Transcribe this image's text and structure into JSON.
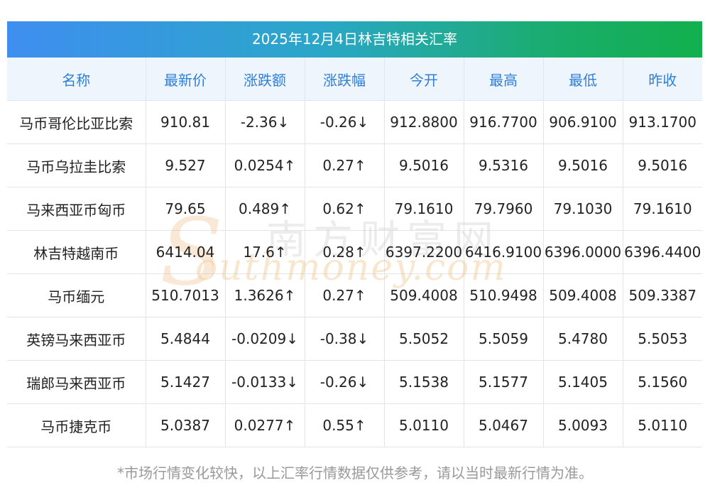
{
  "title": "2025年12月4日林吉特相关汇率",
  "columns": [
    "名称",
    "最新价",
    "涨跌额",
    "涨跌幅",
    "今开",
    "最高",
    "最低",
    "昨收"
  ],
  "rows": [
    {
      "name": "马币哥伦比亚比索",
      "latest": "910.81",
      "change": "-2.36↓",
      "change_pct": "-0.26↓",
      "open": "912.8800",
      "high": "916.7700",
      "low": "906.9100",
      "prev_close": "913.1700",
      "trend": "down"
    },
    {
      "name": "马币乌拉圭比索",
      "latest": "9.527",
      "change": "0.0254↑",
      "change_pct": "0.27↑",
      "open": "9.5016",
      "high": "9.5316",
      "low": "9.5016",
      "prev_close": "9.5016",
      "trend": "up"
    },
    {
      "name": "马来西亚币匈币",
      "latest": "79.65",
      "change": "0.489↑",
      "change_pct": "0.62↑",
      "open": "79.1610",
      "high": "79.7960",
      "low": "79.1030",
      "prev_close": "79.1610",
      "trend": "up"
    },
    {
      "name": "林吉特越南币",
      "latest": "6414.04",
      "change": "17.6↑",
      "change_pct": "0.28↑",
      "open": "6397.2200",
      "high": "6416.9100",
      "low": "6396.0000",
      "prev_close": "6396.4400",
      "trend": "up"
    },
    {
      "name": "马币缅元",
      "latest": "510.7013",
      "change": "1.3626↑",
      "change_pct": "0.27↑",
      "open": "509.4008",
      "high": "510.9498",
      "low": "509.4008",
      "prev_close": "509.3387",
      "trend": "up"
    },
    {
      "name": "英镑马来西亚币",
      "latest": "5.4844",
      "change": "-0.0209↓",
      "change_pct": "-0.38↓",
      "open": "5.5052",
      "high": "5.5059",
      "low": "5.4780",
      "prev_close": "5.5053",
      "trend": "down"
    },
    {
      "name": "瑞郎马来西亚币",
      "latest": "5.1427",
      "change": "-0.0133↓",
      "change_pct": "-0.26↓",
      "open": "5.1538",
      "high": "5.1577",
      "low": "5.1405",
      "prev_close": "5.1560",
      "trend": "down"
    },
    {
      "name": "马币捷克币",
      "latest": "5.0387",
      "change": "0.0277↑",
      "change_pct": "0.55↑",
      "open": "5.0110",
      "high": "5.0467",
      "low": "5.0093",
      "prev_close": "5.0110",
      "trend": "up"
    }
  ],
  "watermark": {
    "cn": "南方财富网",
    "en": "outhmoney.com",
    "letter": "S"
  },
  "footnote": "*市场行情变化较快，以上汇率行情数据仅供参考，请以当时最新行情为准。",
  "colors": {
    "up": "#e52222",
    "down": "#1a8a2e",
    "header_text": "#2f7fd8",
    "header_bg": "#eef5fd"
  }
}
